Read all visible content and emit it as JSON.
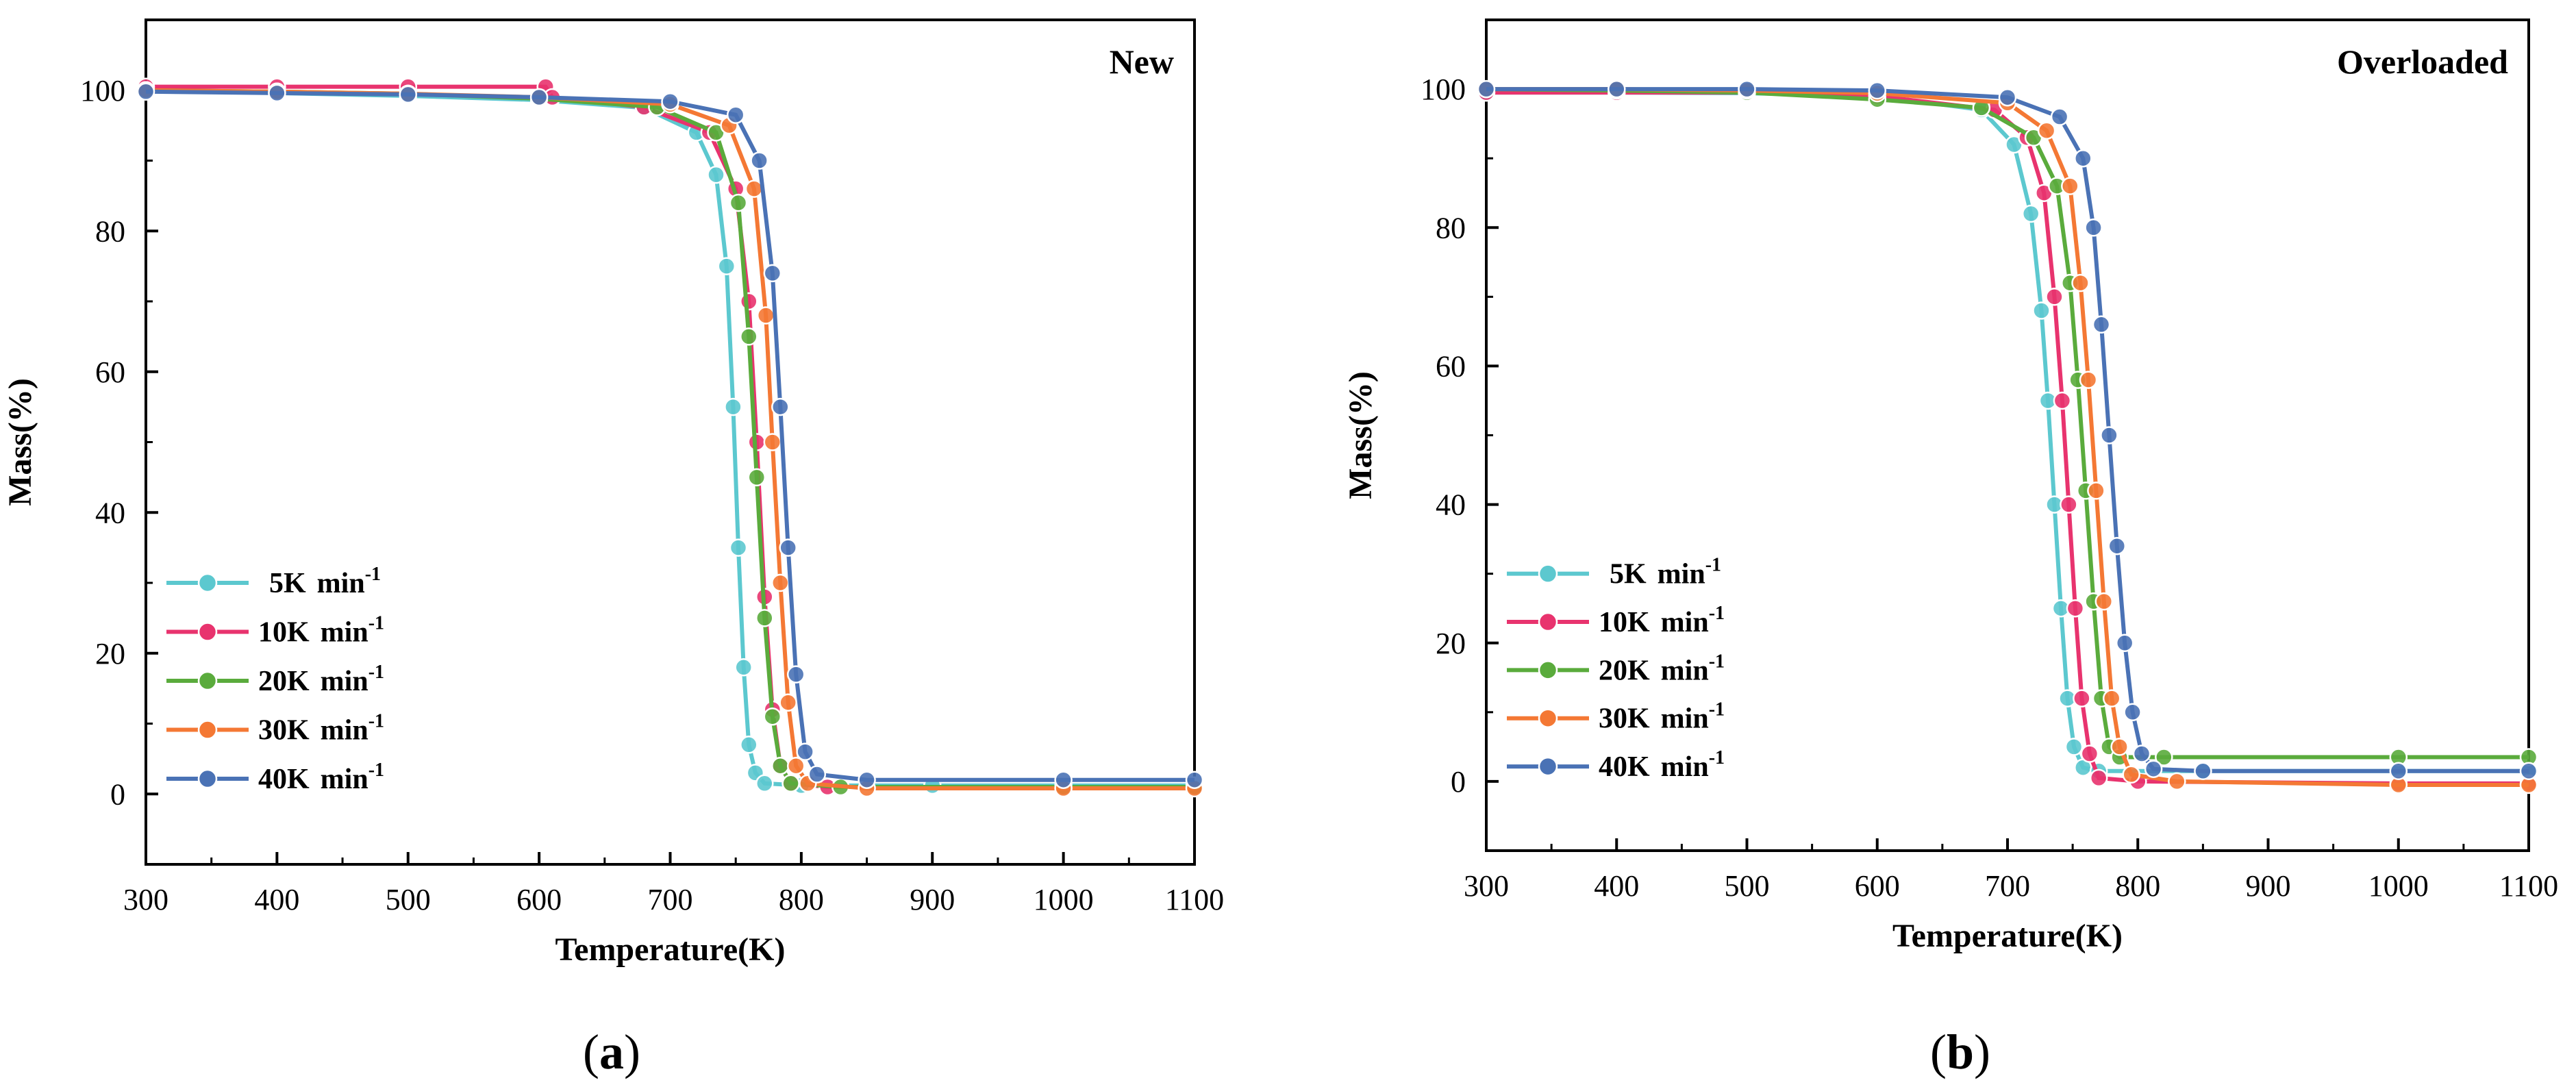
{
  "chart_data": [
    {
      "type": "scatter",
      "panel": "a",
      "caption": {
        "open": "(",
        "letter": "a",
        "close": ")"
      },
      "corner_label": "New",
      "xlabel": "Temperature(K)",
      "ylabel": "Mass(%)",
      "xlim": [
        300,
        1100
      ],
      "ylim": [
        -10,
        110
      ],
      "x_ticks": [
        300,
        400,
        500,
        600,
        700,
        800,
        900,
        1000,
        1100
      ],
      "y_ticks": [
        0,
        20,
        40,
        60,
        80,
        100
      ],
      "grid": false,
      "legend_position": "bottom-left",
      "series": [
        {
          "name": "5K min",
          "base": "5K",
          "unit": "min",
          "exp": "-1",
          "color": "#5cc8cf",
          "points": [
            [
              300,
              100
            ],
            [
              400,
              99.6
            ],
            [
              500,
              99.2
            ],
            [
              600,
              98.6
            ],
            [
              680,
              97.5
            ],
            [
              720,
              94
            ],
            [
              735,
              88
            ],
            [
              743,
              75
            ],
            [
              748,
              55
            ],
            [
              752,
              35
            ],
            [
              756,
              18
            ],
            [
              760,
              7
            ],
            [
              765,
              3
            ],
            [
              772,
              1.5
            ],
            [
              800,
              1.2
            ],
            [
              900,
              1.2
            ],
            [
              1000,
              1.2
            ],
            [
              1100,
              1.2
            ]
          ]
        },
        {
          "name": "10K min",
          "base": "10K",
          "unit": "min",
          "exp": "-1",
          "color": "#e8336e",
          "points": [
            [
              300,
              100.5
            ],
            [
              400,
              100.5
            ],
            [
              500,
              100.5
            ],
            [
              605,
              100.5
            ],
            [
              610,
              99
            ],
            [
              680,
              97.6
            ],
            [
              730,
              94
            ],
            [
              750,
              86
            ],
            [
              760,
              70
            ],
            [
              766,
              50
            ],
            [
              772,
              28
            ],
            [
              778,
              12
            ],
            [
              784,
              4
            ],
            [
              792,
              1.5
            ],
            [
              820,
              1
            ],
            [
              1000,
              1
            ],
            [
              1100,
              1
            ]
          ]
        },
        {
          "name": "20K min",
          "base": "20K",
          "unit": "min",
          "exp": "-1",
          "color": "#5aab3c",
          "points": [
            [
              300,
              100
            ],
            [
              400,
              99.8
            ],
            [
              500,
              99.5
            ],
            [
              600,
              98.8
            ],
            [
              690,
              97.6
            ],
            [
              735,
              94
            ],
            [
              752,
              84
            ],
            [
              760,
              65
            ],
            [
              766,
              45
            ],
            [
              772,
              25
            ],
            [
              778,
              11
            ],
            [
              784,
              4
            ],
            [
              792,
              1.5
            ],
            [
              830,
              1
            ],
            [
              1000,
              1
            ],
            [
              1100,
              1
            ]
          ]
        },
        {
          "name": "30K min",
          "base": "30K",
          "unit": "min",
          "exp": "-1",
          "color": "#f47834",
          "points": [
            [
              300,
              100
            ],
            [
              400,
              99.8
            ],
            [
              500,
              99.5
            ],
            [
              600,
              99
            ],
            [
              700,
              98
            ],
            [
              745,
              95
            ],
            [
              764,
              86
            ],
            [
              773,
              68
            ],
            [
              778,
              50
            ],
            [
              784,
              30
            ],
            [
              790,
              13
            ],
            [
              796,
              4
            ],
            [
              805,
              1.5
            ],
            [
              850,
              0.8
            ],
            [
              1000,
              0.8
            ],
            [
              1100,
              0.8
            ]
          ]
        },
        {
          "name": "40K min",
          "base": "40K",
          "unit": "min",
          "exp": "-1",
          "color": "#4a72b5",
          "points": [
            [
              300,
              99.8
            ],
            [
              400,
              99.6
            ],
            [
              500,
              99.4
            ],
            [
              600,
              99
            ],
            [
              700,
              98.4
            ],
            [
              750,
              96.5
            ],
            [
              768,
              90
            ],
            [
              778,
              74
            ],
            [
              784,
              55
            ],
            [
              790,
              35
            ],
            [
              796,
              17
            ],
            [
              803,
              6
            ],
            [
              812,
              2.8
            ],
            [
              850,
              2
            ],
            [
              1000,
              2
            ],
            [
              1100,
              2
            ]
          ]
        }
      ]
    },
    {
      "type": "scatter",
      "panel": "b",
      "caption": {
        "open": "(",
        "letter": "b",
        "close": ")"
      },
      "corner_label": "Overloaded",
      "xlabel": "Temperature(K)",
      "ylabel": "Mass(%)",
      "xlim": [
        300,
        1100
      ],
      "ylim": [
        -10,
        110
      ],
      "x_ticks": [
        300,
        400,
        500,
        600,
        700,
        800,
        900,
        1000,
        1100
      ],
      "y_ticks": [
        0,
        20,
        40,
        60,
        80,
        100
      ],
      "grid": false,
      "legend_position": "bottom-left",
      "series": [
        {
          "name": "5K min",
          "base": "5K",
          "unit": "min",
          "exp": "-1",
          "color": "#5cc8cf",
          "points": [
            [
              300,
              99.5
            ],
            [
              400,
              99.5
            ],
            [
              500,
              99.4
            ],
            [
              600,
              99
            ],
            [
              680,
              97
            ],
            [
              705,
              92
            ],
            [
              718,
              82
            ],
            [
              726,
              68
            ],
            [
              731,
              55
            ],
            [
              736,
              40
            ],
            [
              741,
              25
            ],
            [
              746,
              12
            ],
            [
              751,
              5
            ],
            [
              758,
              2
            ],
            [
              770,
              1.5
            ],
            [
              850,
              1.5
            ],
            [
              1000,
              1.5
            ],
            [
              1100,
              1.5
            ]
          ]
        },
        {
          "name": "10K min",
          "base": "10K",
          "unit": "min",
          "exp": "-1",
          "color": "#e8336e",
          "points": [
            [
              300,
              99.5
            ],
            [
              400,
              99.5
            ],
            [
              500,
              99.5
            ],
            [
              600,
              99
            ],
            [
              690,
              97
            ],
            [
              715,
              93
            ],
            [
              728,
              85
            ],
            [
              736,
              70
            ],
            [
              742,
              55
            ],
            [
              747,
              40
            ],
            [
              752,
              25
            ],
            [
              757,
              12
            ],
            [
              763,
              4
            ],
            [
              770,
              0.5
            ],
            [
              800,
              0
            ],
            [
              1000,
              -0.3
            ],
            [
              1100,
              -0.3
            ]
          ]
        },
        {
          "name": "20K min",
          "base": "20K",
          "unit": "min",
          "exp": "-1",
          "color": "#5aab3c",
          "points": [
            [
              300,
              100
            ],
            [
              400,
              99.8
            ],
            [
              500,
              99.5
            ],
            [
              600,
              98.5
            ],
            [
              680,
              97.3
            ],
            [
              720,
              93
            ],
            [
              738,
              86
            ],
            [
              748,
              72
            ],
            [
              754,
              58
            ],
            [
              760,
              42
            ],
            [
              766,
              26
            ],
            [
              772,
              12
            ],
            [
              778,
              5
            ],
            [
              786,
              3.5
            ],
            [
              820,
              3.5
            ],
            [
              1000,
              3.5
            ],
            [
              1100,
              3.5
            ]
          ]
        },
        {
          "name": "30K min",
          "base": "30K",
          "unit": "min",
          "exp": "-1",
          "color": "#f47834",
          "points": [
            [
              300,
              100
            ],
            [
              400,
              100
            ],
            [
              500,
              99.8
            ],
            [
              600,
              99.4
            ],
            [
              700,
              98
            ],
            [
              730,
              94
            ],
            [
              748,
              86
            ],
            [
              756,
              72
            ],
            [
              762,
              58
            ],
            [
              768,
              42
            ],
            [
              774,
              26
            ],
            [
              780,
              12
            ],
            [
              786,
              5
            ],
            [
              795,
              1
            ],
            [
              830,
              0
            ],
            [
              1000,
              -0.5
            ],
            [
              1100,
              -0.5
            ]
          ]
        },
        {
          "name": "40K min",
          "base": "40K",
          "unit": "min",
          "exp": "-1",
          "color": "#4a72b5",
          "points": [
            [
              300,
              100
            ],
            [
              400,
              100
            ],
            [
              500,
              100
            ],
            [
              600,
              99.8
            ],
            [
              700,
              98.8
            ],
            [
              740,
              96
            ],
            [
              758,
              90
            ],
            [
              766,
              80
            ],
            [
              772,
              66
            ],
            [
              778,
              50
            ],
            [
              784,
              34
            ],
            [
              790,
              20
            ],
            [
              796,
              10
            ],
            [
              803,
              4
            ],
            [
              812,
              1.8
            ],
            [
              850,
              1.5
            ],
            [
              1000,
              1.5
            ],
            [
              1100,
              1.5
            ]
          ]
        }
      ]
    }
  ]
}
